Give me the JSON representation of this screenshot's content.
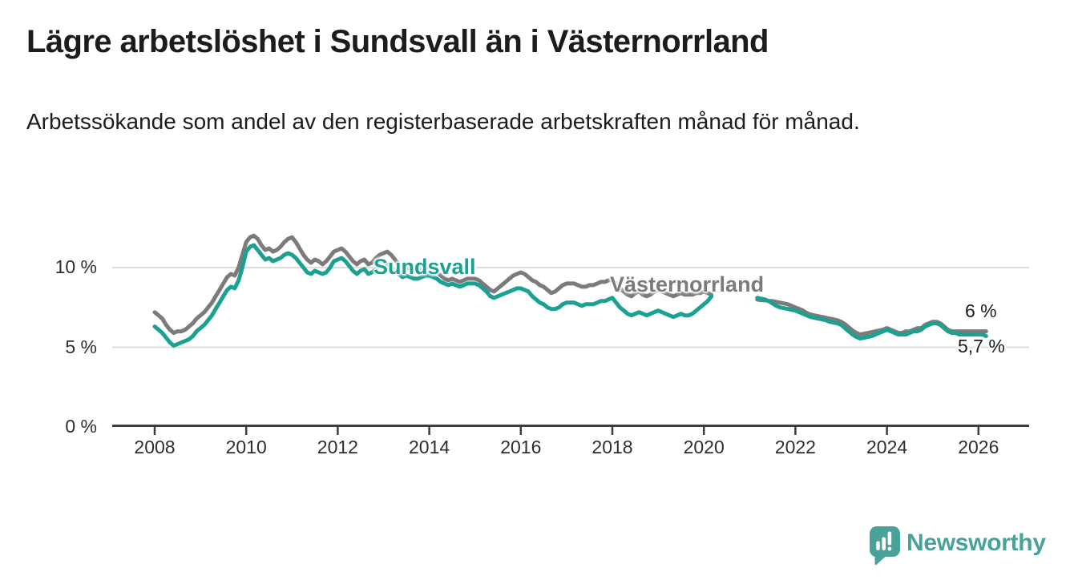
{
  "header": {
    "title": "Lägre arbetslöshet i Sundsvall än i Västernorrland",
    "subtitle": "Arbetssökande som andel av den registerbaserade arbetskraften månad för månad."
  },
  "chart_data": {
    "type": "line",
    "title": "Lägre arbetslöshet i Sundsvall än i Västernorrland",
    "xlabel": "",
    "ylabel": "",
    "grid": "horizontal gridlines at 5 % and 10 % only",
    "legend_position": "inline labels next to lines",
    "x_axis": {
      "ticks": [
        2008,
        2010,
        2012,
        2014,
        2016,
        2018,
        2020,
        2022,
        2024,
        2026
      ],
      "tick_labels": [
        "2008",
        "2010",
        "2012",
        "2014",
        "2016",
        "2018",
        "2020",
        "2022",
        "2024",
        "2026"
      ],
      "range": [
        2007.1,
        2027.1
      ]
    },
    "y_axis": {
      "unit": "%",
      "ticks": [
        {
          "value": 0,
          "label": "0 %"
        },
        {
          "value": 5,
          "label": "5 %"
        },
        {
          "value": 10,
          "label": "10 %"
        }
      ],
      "range": [
        0,
        12.6
      ]
    },
    "data_gap": {
      "from": 2020.25,
      "to": 2021.17
    },
    "series": [
      {
        "name": "Västernorrland",
        "color": "#7b7b7b",
        "end_label": "6 %",
        "segments": [
          {
            "start_year": 2008.0,
            "step_years": 0.0833333,
            "values": [
              7.2,
              7.0,
              6.8,
              6.4,
              6.1,
              5.9,
              6.0,
              6.0,
              6.1,
              6.3,
              6.5,
              6.8,
              7.0,
              7.2,
              7.5,
              7.8,
              8.2,
              8.6,
              9.0,
              9.4,
              9.6,
              9.5,
              10.0,
              10.8,
              11.6,
              11.9,
              12.0,
              11.8,
              11.4,
              11.1,
              11.2,
              11.0,
              11.1,
              11.3,
              11.6,
              11.8,
              11.9,
              11.6,
              11.2,
              10.8,
              10.5,
              10.3,
              10.5,
              10.4,
              10.2,
              10.4,
              10.7,
              11.0,
              11.1,
              11.2,
              11.0,
              10.7,
              10.4,
              10.2,
              10.4,
              10.5,
              10.2,
              10.3,
              10.6,
              10.8,
              10.9,
              11.0,
              10.8,
              10.5,
              10.2,
              10.0,
              10.0,
              9.9,
              9.8,
              9.8,
              9.9,
              10.0,
              10.0,
              9.9,
              9.7,
              9.5,
              9.3,
              9.2,
              9.3,
              9.2,
              9.1,
              9.2,
              9.3,
              9.3,
              9.3,
              9.2,
              9.0,
              8.8,
              8.6,
              8.5,
              8.7,
              8.9,
              9.1,
              9.3,
              9.5,
              9.6,
              9.7,
              9.6,
              9.4,
              9.2,
              9.1,
              8.9,
              8.8,
              8.6,
              8.4,
              8.5,
              8.7,
              8.9,
              9.0,
              9.0,
              9.0,
              8.9,
              8.8,
              8.8,
              8.9,
              8.9,
              9.0,
              9.1,
              9.1,
              9.2,
              9.2,
              9.0,
              8.7,
              8.5,
              8.3,
              8.2,
              8.4,
              8.5,
              8.3,
              8.2,
              8.3,
              8.5,
              8.6,
              8.5,
              8.4,
              8.3,
              8.2,
              8.3,
              8.4,
              8.3,
              8.3,
              8.3,
              8.4,
              8.4,
              8.5,
              8.4,
              8.3
            ]
          },
          {
            "start_year": 2021.1666667,
            "step_years": 0.0833333,
            "values": [
              8.0,
              7.95,
              7.95,
              7.9,
              7.9,
              7.85,
              7.8,
              7.75,
              7.7,
              7.6,
              7.5,
              7.4,
              7.3,
              7.15,
              7.05,
              7.0,
              6.95,
              6.9,
              6.85,
              6.8,
              6.75,
              6.7,
              6.6,
              6.45,
              6.25,
              6.05,
              5.9,
              5.8,
              5.85,
              5.9,
              5.95,
              6.0,
              6.05,
              6.1,
              6.2,
              6.1,
              6.0,
              5.9,
              5.9,
              6.0,
              6.0,
              6.1,
              6.2,
              6.2,
              6.4,
              6.5,
              6.6,
              6.6,
              6.5,
              6.3,
              6.1,
              6.0,
              6.0,
              6.0,
              6.0,
              6.0,
              6.0,
              6.0,
              6.0,
              6.0,
              6.0
            ]
          }
        ]
      },
      {
        "name": "Sundsvall",
        "color": "#1aa192",
        "end_label": "5,7 %",
        "segments": [
          {
            "start_year": 2008.0,
            "step_years": 0.0833333,
            "values": [
              6.3,
              6.1,
              5.9,
              5.6,
              5.3,
              5.1,
              5.2,
              5.3,
              5.4,
              5.5,
              5.7,
              6.0,
              6.2,
              6.4,
              6.7,
              7.0,
              7.4,
              7.8,
              8.2,
              8.6,
              8.8,
              8.7,
              9.2,
              10.0,
              11.0,
              11.3,
              11.4,
              11.1,
              10.8,
              10.5,
              10.6,
              10.4,
              10.5,
              10.6,
              10.8,
              10.9,
              10.8,
              10.6,
              10.3,
              10.0,
              9.7,
              9.6,
              9.8,
              9.7,
              9.6,
              9.7,
              10.0,
              10.4,
              10.5,
              10.6,
              10.4,
              10.1,
              9.8,
              9.6,
              9.8,
              9.9,
              9.6,
              9.7,
              9.9,
              10.1,
              10.2,
              10.2,
              10.0,
              9.8,
              9.6,
              9.4,
              9.5,
              9.4,
              9.3,
              9.3,
              9.4,
              9.5,
              9.5,
              9.4,
              9.3,
              9.1,
              9.0,
              8.9,
              9.0,
              8.9,
              8.8,
              8.9,
              9.0,
              9.0,
              9.0,
              8.9,
              8.7,
              8.5,
              8.2,
              8.1,
              8.2,
              8.3,
              8.4,
              8.5,
              8.6,
              8.7,
              8.7,
              8.6,
              8.5,
              8.2,
              8.0,
              7.8,
              7.7,
              7.5,
              7.4,
              7.4,
              7.5,
              7.7,
              7.8,
              7.8,
              7.8,
              7.7,
              7.6,
              7.7,
              7.7,
              7.7,
              7.8,
              7.9,
              7.9,
              8.0,
              8.1,
              7.8,
              7.5,
              7.3,
              7.1,
              7.0,
              7.1,
              7.2,
              7.1,
              7.0,
              7.1,
              7.2,
              7.3,
              7.2,
              7.1,
              7.0,
              6.9,
              7.0,
              7.1,
              7.0,
              7.0,
              7.1,
              7.3,
              7.5,
              7.7,
              7.9,
              8.2
            ]
          },
          {
            "start_year": 2021.1666667,
            "step_years": 0.0833333,
            "values": [
              8.1,
              8.05,
              8.0,
              7.9,
              7.75,
              7.6,
              7.5,
              7.45,
              7.4,
              7.35,
              7.3,
              7.2,
              7.1,
              7.0,
              6.9,
              6.85,
              6.8,
              6.75,
              6.7,
              6.6,
              6.55,
              6.5,
              6.4,
              6.2,
              6.0,
              5.8,
              5.65,
              5.55,
              5.6,
              5.65,
              5.7,
              5.8,
              5.9,
              6.0,
              6.1,
              6.0,
              5.9,
              5.8,
              5.8,
              5.8,
              5.9,
              6.0,
              6.0,
              6.1,
              6.3,
              6.4,
              6.5,
              6.5,
              6.4,
              6.2,
              6.0,
              5.9,
              5.9,
              5.8,
              5.8,
              5.8,
              5.8,
              5.8,
              5.8,
              5.8,
              5.7
            ]
          }
        ]
      }
    ]
  },
  "footer": {
    "brand": "Newsworthy",
    "brand_color": "#48a29a",
    "logo_icon": "newsworthy-speech-bubble-bar-chart-icon"
  }
}
